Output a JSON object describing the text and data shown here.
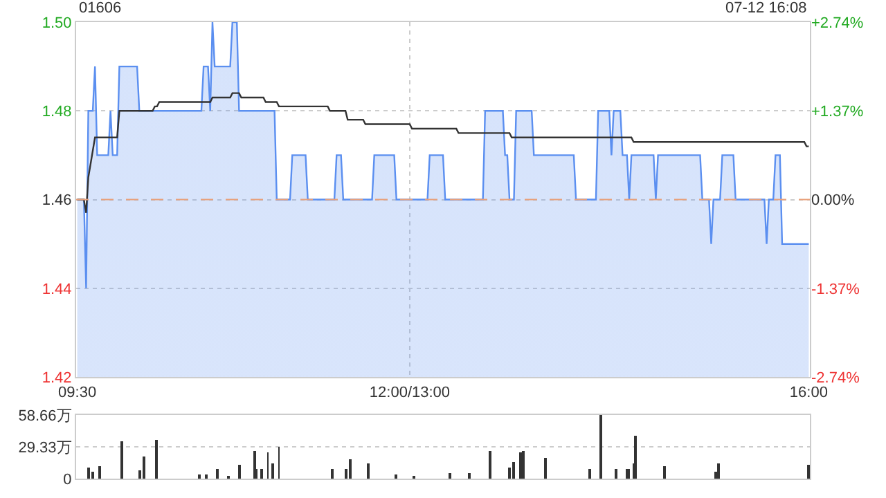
{
  "chart_data": [
    {
      "type": "line",
      "title": "01606",
      "annotations": [
        "07-12 16:08"
      ],
      "categories": [
        "09:30",
        null,
        null,
        null,
        null,
        null,
        null,
        null,
        null,
        null,
        null,
        null,
        null,
        null,
        null,
        null,
        null,
        null,
        null,
        null,
        null,
        null,
        null,
        null,
        null,
        null,
        null,
        null,
        null,
        null,
        null,
        null,
        null,
        null,
        null,
        null,
        null,
        null,
        null,
        null,
        null,
        null,
        null,
        null,
        null,
        null,
        null,
        null,
        null,
        null,
        null,
        null,
        null,
        null,
        null,
        null,
        null,
        null,
        null,
        null,
        null,
        null,
        null,
        null,
        null,
        null,
        null,
        null,
        null,
        null,
        null,
        null,
        null,
        null,
        null,
        null,
        null,
        null,
        null,
        null,
        null,
        null,
        null,
        null,
        null,
        null,
        null,
        null,
        null,
        null,
        null,
        null,
        null,
        null,
        null,
        null,
        null,
        null,
        null,
        null,
        null,
        null,
        null,
        null,
        null,
        null,
        null,
        null,
        null,
        null,
        null,
        null,
        null,
        null,
        null,
        null,
        null,
        null,
        null,
        null,
        null,
        null,
        null,
        null,
        null,
        null,
        null,
        null,
        null,
        null,
        null,
        null,
        null,
        null,
        null,
        null,
        null,
        null,
        null,
        null,
        null,
        null,
        null,
        null,
        null,
        null,
        null,
        null,
        null,
        null,
        "12:00/13:00",
        null,
        null,
        null,
        null,
        null,
        null,
        null,
        null,
        null,
        null,
        null,
        null,
        null,
        null,
        null,
        null,
        null,
        null,
        null,
        null,
        null,
        null,
        null,
        null,
        null,
        null,
        null,
        null,
        null,
        null,
        null,
        null,
        null,
        null,
        null,
        null,
        null,
        null,
        null,
        null,
        null,
        null,
        null,
        null,
        null,
        null,
        null,
        null,
        null,
        null,
        null,
        null,
        null,
        null,
        null,
        null,
        null,
        null,
        null,
        null,
        null,
        null,
        null,
        null,
        null,
        null,
        null,
        null,
        null,
        null,
        null,
        null,
        null,
        null,
        null,
        null,
        null,
        null,
        null,
        null,
        null,
        null,
        null,
        null,
        null,
        null,
        null,
        null,
        null,
        null,
        null,
        null,
        null,
        null,
        null,
        null,
        null,
        null,
        null,
        null,
        null,
        null,
        null,
        null,
        null,
        null,
        null,
        null,
        null,
        null,
        null,
        null,
        null,
        null,
        null,
        null,
        null,
        null,
        null,
        null,
        null,
        null,
        null,
        null,
        null,
        null,
        null,
        null,
        null,
        null,
        null,
        null,
        null,
        null,
        null,
        null,
        null,
        null,
        null,
        null,
        null,
        null,
        null,
        null,
        null,
        null,
        null,
        null,
        null,
        null,
        null,
        null,
        null,
        null,
        null,
        null,
        null,
        null,
        null,
        null,
        null,
        null,
        null,
        null,
        null,
        null,
        null,
        null,
        null,
        null,
        null,
        null,
        null,
        null,
        null,
        null,
        null,
        null,
        null,
        "16:00"
      ],
      "ylim": [
        1.42,
        1.5
      ],
      "yticks": [
        1.42,
        1.44,
        1.46,
        1.48,
        {
          "value": 1.5,
          "label": "1.50"
        }
      ],
      "y2lim": [
        -2.74,
        2.74
      ],
      "y2ticks": [
        {
          "value": -2.74,
          "label": "-2.74%"
        },
        {
          "value": -1.37,
          "label": "-1.37%"
        },
        {
          "value": 0,
          "label": "0.00%"
        },
        {
          "value": 1.37,
          "label": "+1.37%"
        },
        {
          "value": 2.74,
          "label": "+2.74%"
        }
      ],
      "grid": true,
      "legend": false,
      "marker": "none",
      "ref_lines": [
        {
          "axis": "y",
          "value": 1.46,
          "color": "#e8a07a",
          "line_style": "dashed"
        }
      ],
      "series": [
        {
          "type": "area",
          "color": "#5b8ff0",
          "values": [
            1.46,
            1.46,
            1.46,
            1.46,
            1.44,
            1.48,
            1.48,
            1.48,
            1.49,
            1.47,
            1.47,
            1.47,
            1.47,
            1.47,
            1.47,
            1.48,
            1.47,
            1.47,
            1.47,
            1.49,
            1.49,
            1.49,
            1.49,
            1.49,
            1.49,
            1.49,
            1.49,
            1.49,
            1.48,
            1.48,
            1.48,
            1.48,
            1.48,
            1.48,
            1.48,
            1.48,
            1.48,
            1.48,
            1.48,
            1.48,
            1.48,
            1.48,
            1.48,
            1.48,
            1.48,
            1.48,
            1.48,
            1.48,
            1.48,
            1.48,
            1.48,
            1.48,
            1.48,
            1.48,
            1.48,
            1.48,
            1.48,
            1.49,
            1.49,
            1.49,
            1.48,
            1.5,
            1.49,
            1.49,
            1.49,
            1.49,
            1.49,
            1.49,
            1.49,
            1.49,
            1.5,
            1.5,
            1.5,
            1.48,
            1.48,
            1.48,
            1.48,
            1.48,
            1.48,
            1.48,
            1.48,
            1.48,
            1.48,
            1.48,
            1.48,
            1.48,
            1.48,
            1.48,
            1.48,
            1.48,
            1.46,
            1.46,
            1.46,
            1.46,
            1.46,
            1.46,
            1.46,
            1.47,
            1.47,
            1.47,
            1.47,
            1.47,
            1.47,
            1.47,
            1.46,
            1.46,
            1.46,
            1.46,
            1.46,
            1.46,
            1.46,
            1.46,
            1.46,
            1.46,
            1.46,
            1.46,
            1.46,
            1.47,
            1.47,
            1.47,
            1.46,
            1.46,
            1.46,
            1.46,
            1.46,
            1.46,
            1.46,
            1.46,
            1.46,
            1.46,
            1.46,
            1.46,
            1.46,
            1.46,
            1.47,
            1.47,
            1.47,
            1.47,
            1.47,
            1.47,
            1.47,
            1.47,
            1.47,
            1.47,
            1.46,
            1.46,
            1.46,
            1.46,
            1.46,
            1.46,
            1.46,
            1.46,
            1.46,
            1.46,
            1.46,
            1.46,
            1.46,
            1.46,
            1.46,
            1.47,
            1.47,
            1.47,
            1.47,
            1.47,
            1.47,
            1.47,
            1.46,
            1.46,
            1.46,
            1.46,
            1.46,
            1.46,
            1.46,
            1.46,
            1.46,
            1.46,
            1.46,
            1.46,
            1.46,
            1.46,
            1.46,
            1.46,
            1.46,
            1.46,
            1.48,
            1.48,
            1.48,
            1.48,
            1.48,
            1.48,
            1.48,
            1.48,
            1.48,
            1.47,
            1.47,
            1.46,
            1.46,
            1.46,
            1.48,
            1.48,
            1.48,
            1.48,
            1.48,
            1.48,
            1.48,
            1.48,
            1.47,
            1.47,
            1.47,
            1.47,
            1.47,
            1.47,
            1.47,
            1.47,
            1.47,
            1.47,
            1.47,
            1.47,
            1.47,
            1.47,
            1.47,
            1.47,
            1.47,
            1.47,
            1.47,
            1.46,
            1.46,
            1.46,
            1.46,
            1.46,
            1.46,
            1.46,
            1.46,
            1.46,
            1.46,
            1.48,
            1.48,
            1.48,
            1.48,
            1.48,
            1.48,
            1.47,
            1.48,
            1.48,
            1.48,
            1.48,
            1.47,
            1.47,
            1.47,
            1.46,
            1.47,
            1.47,
            1.47,
            1.47,
            1.47,
            1.47,
            1.47,
            1.47,
            1.47,
            1.47,
            1.47,
            1.46,
            1.47,
            1.47,
            1.47,
            1.47,
            1.47,
            1.47,
            1.47,
            1.47,
            1.47,
            1.47,
            1.47,
            1.47,
            1.47,
            1.47,
            1.47,
            1.47,
            1.47,
            1.47,
            1.47,
            1.47,
            1.46,
            1.46,
            1.46,
            1.46,
            1.45,
            1.46,
            1.46,
            1.46,
            1.46,
            1.47,
            1.47,
            1.47,
            1.47,
            1.47,
            1.47,
            1.46,
            1.46,
            1.46,
            1.46,
            1.46,
            1.46,
            1.46,
            1.46,
            1.46,
            1.46,
            1.46,
            1.46,
            1.46,
            1.46,
            1.45,
            1.46,
            1.46,
            1.46,
            1.47,
            1.47,
            1.47,
            1.45,
            1.45,
            1.45,
            1.45,
            1.45,
            1.45,
            1.45,
            1.45,
            1.45,
            1.45,
            1.45,
            1.45,
            1.45
          ]
        },
        {
          "type": "line",
          "color": "#333333",
          "values": [
            1.46,
            1.46,
            1.46,
            1.46,
            1.457,
            1.465,
            1.468,
            1.471,
            1.474,
            1.474,
            1.474,
            1.474,
            1.474,
            1.474,
            1.474,
            1.474,
            1.474,
            1.474,
            1.474,
            1.48,
            1.48,
            1.48,
            1.48,
            1.48,
            1.48,
            1.48,
            1.48,
            1.48,
            1.48,
            1.48,
            1.48,
            1.48,
            1.48,
            1.48,
            1.48,
            1.481,
            1.481,
            1.482,
            1.482,
            1.482,
            1.482,
            1.482,
            1.482,
            1.482,
            1.482,
            1.482,
            1.482,
            1.482,
            1.482,
            1.482,
            1.482,
            1.482,
            1.482,
            1.482,
            1.482,
            1.482,
            1.482,
            1.482,
            1.482,
            1.482,
            1.482,
            1.483,
            1.483,
            1.483,
            1.483,
            1.483,
            1.483,
            1.483,
            1.483,
            1.483,
            1.484,
            1.484,
            1.484,
            1.484,
            1.483,
            1.483,
            1.483,
            1.483,
            1.483,
            1.483,
            1.483,
            1.483,
            1.483,
            1.483,
            1.483,
            1.482,
            1.482,
            1.482,
            1.482,
            1.482,
            1.482,
            1.481,
            1.481,
            1.481,
            1.481,
            1.481,
            1.481,
            1.481,
            1.481,
            1.481,
            1.481,
            1.481,
            1.481,
            1.481,
            1.481,
            1.481,
            1.481,
            1.481,
            1.481,
            1.481,
            1.481,
            1.481,
            1.481,
            1.481,
            1.48,
            1.48,
            1.48,
            1.48,
            1.48,
            1.48,
            1.48,
            1.48,
            1.478,
            1.478,
            1.478,
            1.478,
            1.478,
            1.478,
            1.478,
            1.478,
            1.477,
            1.477,
            1.477,
            1.477,
            1.477,
            1.477,
            1.477,
            1.477,
            1.477,
            1.477,
            1.477,
            1.477,
            1.477,
            1.477,
            1.477,
            1.477,
            1.477,
            1.477,
            1.477,
            1.477,
            1.477,
            1.476,
            1.476,
            1.476,
            1.476,
            1.476,
            1.476,
            1.476,
            1.476,
            1.476,
            1.476,
            1.476,
            1.476,
            1.476,
            1.476,
            1.476,
            1.476,
            1.476,
            1.476,
            1.476,
            1.476,
            1.476,
            1.475,
            1.475,
            1.475,
            1.475,
            1.475,
            1.475,
            1.475,
            1.475,
            1.475,
            1.475,
            1.475,
            1.475,
            1.475,
            1.475,
            1.475,
            1.475,
            1.475,
            1.475,
            1.475,
            1.475,
            1.475,
            1.475,
            1.475,
            1.475,
            1.474,
            1.474,
            1.474,
            1.474,
            1.474,
            1.474,
            1.474,
            1.474,
            1.474,
            1.474,
            1.474,
            1.474,
            1.474,
            1.474,
            1.474,
            1.474,
            1.474,
            1.474,
            1.474,
            1.474,
            1.474,
            1.474,
            1.474,
            1.474,
            1.474,
            1.474,
            1.474,
            1.474,
            1.474,
            1.474,
            1.474,
            1.474,
            1.474,
            1.474,
            1.474,
            1.474,
            1.474,
            1.474,
            1.474,
            1.474,
            1.474,
            1.474,
            1.474,
            1.474,
            1.474,
            1.474,
            1.474,
            1.474,
            1.474,
            1.474,
            1.474,
            1.474,
            1.474,
            1.474,
            1.474,
            1.473,
            1.473,
            1.473,
            1.473,
            1.473,
            1.473,
            1.473,
            1.473,
            1.473,
            1.473,
            1.473,
            1.473,
            1.473,
            1.473,
            1.473,
            1.473,
            1.473,
            1.473,
            1.473,
            1.473,
            1.473,
            1.473,
            1.473,
            1.473,
            1.473,
            1.473,
            1.473,
            1.473,
            1.473,
            1.473,
            1.473,
            1.473,
            1.473,
            1.473,
            1.473,
            1.473,
            1.473,
            1.473,
            1.473,
            1.473,
            1.473,
            1.473,
            1.473,
            1.473,
            1.473,
            1.473,
            1.473,
            1.473,
            1.473,
            1.473,
            1.473,
            1.473,
            1.473,
            1.473,
            1.473,
            1.473,
            1.473,
            1.473,
            1.473,
            1.473,
            1.473,
            1.473,
            1.473,
            1.473,
            1.473,
            1.473,
            1.473,
            1.473,
            1.473,
            1.473,
            1.473,
            1.473,
            1.473,
            1.473,
            1.473,
            1.473,
            1.473,
            1.473,
            1.472,
            1.472
          ]
        }
      ]
    },
    {
      "type": "bar",
      "categories": [
        null,
        null,
        null,
        null,
        null,
        null,
        null,
        null,
        null,
        null,
        null,
        null,
        null,
        null,
        null,
        null,
        null,
        null,
        null,
        null,
        null,
        null,
        null,
        null,
        null,
        null,
        null,
        null,
        null,
        null,
        null,
        null,
        null,
        null,
        null,
        null,
        null,
        null,
        null,
        null,
        null,
        null,
        null,
        null,
        null,
        null,
        null,
        null,
        null,
        null,
        null,
        null,
        null,
        null,
        null,
        null,
        null,
        null,
        null,
        null,
        null,
        null,
        null,
        null,
        null,
        null,
        null,
        null,
        null,
        null,
        null,
        null,
        null,
        null,
        null,
        null,
        null,
        null,
        null,
        null,
        null,
        null,
        null,
        null,
        null,
        null,
        null,
        null,
        null,
        null,
        null,
        null,
        null,
        null,
        null,
        null,
        null,
        null,
        null,
        null,
        null,
        null,
        null,
        null,
        null,
        null,
        null,
        null,
        null,
        null,
        null,
        null,
        null,
        null,
        null,
        null,
        null,
        null,
        null,
        null,
        null,
        null,
        null,
        null,
        null,
        null,
        null,
        null,
        null,
        null,
        null,
        null,
        null,
        null,
        null,
        null,
        null,
        null,
        null,
        null,
        null,
        null,
        null,
        null,
        null,
        null,
        null,
        null,
        null,
        null,
        null,
        null,
        null,
        null,
        null,
        null,
        null,
        null,
        null,
        null,
        null,
        null,
        null,
        null,
        null,
        null,
        null,
        null,
        null,
        null,
        null,
        null,
        null,
        null,
        null,
        null,
        null,
        null,
        null,
        null,
        null,
        null,
        null,
        null,
        null,
        null,
        null,
        null,
        null,
        null,
        null,
        null,
        null,
        null,
        null,
        null,
        null,
        null,
        null,
        null,
        null,
        null,
        null,
        null,
        null,
        null,
        null,
        null,
        null,
        null,
        null,
        null,
        null,
        null,
        null,
        null,
        null,
        null,
        null,
        null,
        null,
        null,
        null,
        null,
        null,
        null,
        null,
        null,
        null,
        null,
        null,
        null,
        null,
        null,
        null,
        null,
        null,
        null,
        null,
        null,
        null,
        null,
        null,
        null,
        null,
        null,
        null,
        null,
        null,
        null,
        null,
        null,
        null,
        null,
        null,
        null,
        null,
        null,
        null,
        null,
        null,
        null,
        null,
        null,
        null,
        null,
        null,
        null,
        null,
        null,
        null,
        null,
        null,
        null,
        null,
        null,
        null,
        null,
        null,
        null,
        null,
        null,
        null,
        null,
        null,
        null,
        null,
        null,
        null,
        null,
        null,
        null,
        null,
        null,
        null,
        null,
        null,
        null,
        null,
        null,
        null,
        null,
        null,
        null,
        null,
        null,
        null,
        null,
        null,
        null,
        null,
        null,
        null,
        null,
        null,
        null,
        null,
        null,
        null,
        null,
        null,
        null,
        null,
        null,
        null,
        null,
        null,
        null,
        null,
        null,
        null
      ],
      "ylim": [
        0,
        58.66
      ],
      "yticks": [
        0,
        {
          "value": 29.33,
          "label": "29.33万"
        },
        {
          "value": 58.66,
          "label": "58.66万"
        }
      ],
      "tick_labels": "y",
      "grid": "y",
      "legend": false,
      "color": "#333333",
      "values": [
        null,
        null,
        null,
        null,
        null,
        10,
        null,
        6,
        null,
        null,
        11,
        null,
        null,
        null,
        null,
        null,
        null,
        null,
        null,
        null,
        34,
        null,
        null,
        null,
        null,
        null,
        null,
        null,
        8,
        null,
        20,
        null,
        null,
        null,
        null,
        null,
        36,
        null,
        null,
        null,
        null,
        null,
        null,
        null,
        null,
        null,
        null,
        null,
        null,
        null,
        null,
        null,
        null,
        null,
        null,
        4,
        null,
        null,
        4,
        null,
        null,
        null,
        null,
        9,
        null,
        null,
        null,
        null,
        3,
        null,
        null,
        null,
        null,
        13,
        null,
        null,
        null,
        null,
        null,
        null,
        26,
        9,
        null,
        9,
        null,
        null,
        24,
        null,
        14,
        null,
        null,
        29,
        null,
        null,
        null,
        null,
        null,
        null,
        null,
        null,
        null,
        null,
        null,
        null,
        null,
        null,
        null,
        null,
        null,
        null,
        null,
        null,
        null,
        null,
        null,
        9,
        null,
        null,
        null,
        null,
        null,
        9,
        null,
        18,
        null,
        null,
        null,
        null,
        null,
        null,
        null,
        14,
        null,
        null,
        null,
        null,
        null,
        null,
        null,
        null,
        null,
        null,
        null,
        null,
        4,
        null,
        null,
        null,
        null,
        null,
        null,
        null,
        3,
        null,
        null,
        null,
        null,
        null,
        null,
        null,
        null,
        null,
        null,
        null,
        null,
        null,
        null,
        null,
        5,
        null,
        null,
        null,
        null,
        null,
        null,
        null,
        null,
        5,
        null,
        null,
        null,
        null,
        null,
        null,
        null,
        null,
        25,
        null,
        null,
        null,
        null,
        null,
        null,
        null,
        null,
        10,
        null,
        15,
        null,
        null,
        24,
        25,
        null,
        null,
        null,
        null,
        null,
        null,
        null,
        null,
        null,
        19,
        null,
        null,
        null,
        null,
        null,
        null,
        null,
        null,
        null,
        null,
        null,
        null,
        null,
        null,
        null,
        null,
        null,
        null,
        null,
        9,
        null,
        null,
        null,
        null,
        58.66,
        null,
        null,
        null,
        null,
        null,
        null,
        9,
        null,
        null,
        null,
        null,
        9,
        9,
        null,
        14,
        40,
        null,
        null,
        null,
        null,
        null,
        null,
        null,
        null,
        null,
        null,
        null,
        null,
        11,
        null,
        null,
        null,
        null,
        null,
        null,
        null,
        null,
        null,
        null,
        null,
        null,
        null,
        null,
        null,
        null,
        null,
        null,
        null,
        null,
        null,
        null,
        7,
        14,
        null,
        null,
        null,
        null,
        null,
        null,
        null,
        null,
        null,
        null,
        null,
        null,
        null,
        null,
        null,
        null,
        null,
        null,
        null,
        null,
        null,
        null,
        null,
        null,
        null,
        null,
        null,
        null,
        null,
        null,
        null,
        null,
        null,
        null,
        null,
        null,
        null,
        null,
        null,
        null,
        13
      ]
    }
  ]
}
